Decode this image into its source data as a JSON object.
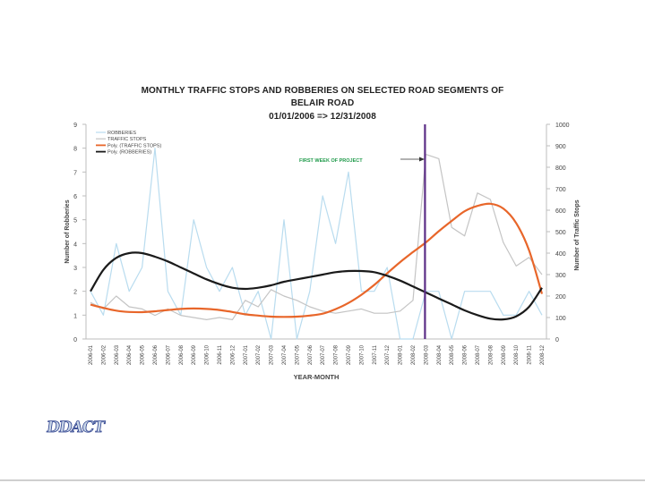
{
  "header": {
    "title_line1": "MONTHLY TRAFFIC STOPS AND ROBBERIES ON SELECTED ROAD SEGMENTS OF",
    "title_line2": "BELAIR ROAD",
    "title_line3": "01/01/2006 => 12/31/2008"
  },
  "logo": {
    "text": "DDACT"
  },
  "colors": {
    "robberies": "#b9dcef",
    "traffic_stops": "#c4c4c4",
    "poly_traffic": "#e8662a",
    "poly_robberies": "#1a1a1a",
    "project_marker": "#5b2d86",
    "annotation": "#1f9a4a"
  },
  "chart_data": {
    "type": "line",
    "title": "MONTHLY TRAFFIC STOPS AND ROBBERIES ON SELECTED ROAD SEGMENTS OF BELAIR ROAD 01/01/2006 => 12/31/2008",
    "xlabel": "YEAR-MONTH",
    "ylabel_left": "Number of Robberies",
    "ylabel_right": "Number of Traffic Stops",
    "ylim_left": [
      0,
      9
    ],
    "ylim_right": [
      0,
      1000
    ],
    "yticks_left": [
      "0",
      "1",
      "2",
      "3",
      "4",
      "5",
      "6",
      "7",
      "8",
      "9"
    ],
    "yticks_right": [
      "0",
      "100",
      "200",
      "300",
      "400",
      "500",
      "600",
      "700",
      "800",
      "900",
      "1000"
    ],
    "categories": [
      "2006-01",
      "2006-02",
      "2006-03",
      "2006-04",
      "2006-05",
      "2006-06",
      "2006-07",
      "2006-08",
      "2006-09",
      "2006-10",
      "2006-11",
      "2006-12",
      "2007-01",
      "2007-02",
      "2007-03",
      "2007-04",
      "2007-05",
      "2007-06",
      "2007-07",
      "2007-08",
      "2007-09",
      "2007-10",
      "2007-11",
      "2007-12",
      "2008-01",
      "2008-02",
      "2008-03",
      "2008-04",
      "2008-05",
      "2008-06",
      "2008-07",
      "2008-08",
      "2008-09",
      "2008-10",
      "2008-11",
      "2008-12"
    ],
    "legend": [
      "ROBBERIES",
      "TRAFFIC STOPS",
      "Poly. (TRAFFIC STOPS)",
      "Poly. (ROBBERIES)"
    ],
    "legend_position": "top-left",
    "series": [
      {
        "name": "ROBBERIES",
        "axis": "left",
        "values": [
          2,
          1,
          4,
          2,
          3,
          8,
          2,
          1,
          5,
          3,
          2,
          3,
          1,
          2,
          0,
          5,
          0,
          2,
          6,
          4,
          7,
          2,
          2,
          3,
          0,
          0,
          2,
          2,
          0,
          2,
          2,
          2,
          1,
          1,
          2,
          1
        ]
      },
      {
        "name": "TRAFFIC STOPS",
        "axis": "right",
        "values": [
          170,
          140,
          200,
          150,
          140,
          110,
          140,
          110,
          100,
          90,
          100,
          90,
          180,
          150,
          230,
          200,
          180,
          150,
          130,
          120,
          130,
          140,
          120,
          120,
          130,
          180,
          860,
          840,
          520,
          480,
          680,
          650,
          450,
          340,
          380,
          300
        ]
      },
      {
        "name": "Poly. (TRAFFIC STOPS)",
        "axis": "right",
        "values": [
          160,
          145,
          132,
          126,
          125,
          129,
          135,
          140,
          142,
          140,
          135,
          126,
          115,
          109,
          104,
          103,
          104,
          109,
          118,
          139,
          168,
          206,
          252,
          306,
          358,
          405,
          450,
          502,
          550,
          595,
          620,
          630,
          608,
          540,
          413,
          210
        ]
      },
      {
        "name": "Poly. (ROBBERIES)",
        "axis": "left",
        "values": [
          2.0,
          2.9,
          3.4,
          3.6,
          3.6,
          3.45,
          3.25,
          3.0,
          2.75,
          2.5,
          2.3,
          2.15,
          2.1,
          2.15,
          2.25,
          2.4,
          2.5,
          2.6,
          2.7,
          2.8,
          2.85,
          2.85,
          2.8,
          2.65,
          2.45,
          2.2,
          1.95,
          1.7,
          1.45,
          1.2,
          1.0,
          0.85,
          0.82,
          0.95,
          1.35,
          2.15
        ]
      }
    ],
    "annotation": {
      "text": "FIRST WEEK OF PROJECT",
      "category": "2008-03"
    }
  }
}
